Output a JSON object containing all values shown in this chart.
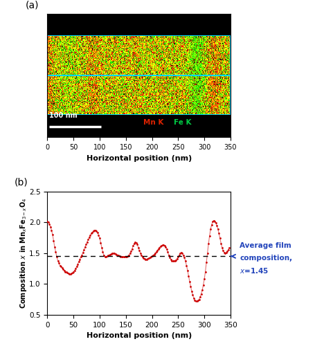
{
  "panel_a_label": "(a)",
  "panel_b_label": "(b)",
  "xlabel_b": "Horizontal position (nm)",
  "xlabel_a": "Horizontal position (nm)",
  "xlim": [
    0,
    350
  ],
  "ylim": [
    0.5,
    2.5
  ],
  "yticks": [
    0.5,
    1.0,
    1.5,
    2.0,
    2.5
  ],
  "xticks": [
    0,
    50,
    100,
    150,
    200,
    250,
    300,
    350
  ],
  "avg_composition": 1.45,
  "avg_color": "#2244bb",
  "line_color": "#cc0000",
  "marker_color": "#cc0000",
  "scale_bar_nm": "100 nm",
  "mn_k_color": "#dd2200",
  "fe_k_color": "#00cc44",
  "x_data": [
    0,
    2,
    4,
    6,
    8,
    10,
    12,
    14,
    16,
    18,
    20,
    22,
    24,
    26,
    28,
    30,
    32,
    34,
    36,
    38,
    40,
    42,
    44,
    46,
    48,
    50,
    52,
    54,
    56,
    58,
    60,
    62,
    64,
    66,
    68,
    70,
    72,
    74,
    76,
    78,
    80,
    82,
    84,
    86,
    88,
    90,
    92,
    94,
    96,
    98,
    100,
    102,
    104,
    106,
    108,
    110,
    112,
    114,
    116,
    118,
    120,
    122,
    124,
    126,
    128,
    130,
    132,
    134,
    136,
    138,
    140,
    142,
    144,
    146,
    148,
    150,
    152,
    154,
    156,
    158,
    160,
    162,
    164,
    166,
    168,
    170,
    172,
    174,
    176,
    178,
    180,
    182,
    184,
    186,
    188,
    190,
    192,
    194,
    196,
    198,
    200,
    202,
    204,
    206,
    208,
    210,
    212,
    214,
    216,
    218,
    220,
    222,
    224,
    226,
    228,
    230,
    232,
    234,
    236,
    238,
    240,
    242,
    244,
    246,
    248,
    250,
    252,
    254,
    256,
    258,
    260,
    262,
    264,
    266,
    268,
    270,
    272,
    274,
    276,
    278,
    280,
    282,
    284,
    286,
    288,
    290,
    292,
    294,
    296,
    298,
    300,
    302,
    304,
    306,
    308,
    310,
    312,
    314,
    316,
    318,
    320,
    322,
    324,
    326,
    328,
    330,
    332,
    334,
    336,
    338,
    340,
    342,
    344,
    346,
    348
  ],
  "y_data": [
    2.02,
    2.0,
    1.97,
    1.93,
    1.87,
    1.8,
    1.7,
    1.6,
    1.52,
    1.44,
    1.38,
    1.34,
    1.3,
    1.28,
    1.26,
    1.24,
    1.22,
    1.2,
    1.19,
    1.18,
    1.17,
    1.16,
    1.16,
    1.17,
    1.18,
    1.2,
    1.22,
    1.25,
    1.28,
    1.32,
    1.36,
    1.4,
    1.44,
    1.47,
    1.51,
    1.56,
    1.6,
    1.64,
    1.68,
    1.72,
    1.76,
    1.79,
    1.82,
    1.84,
    1.86,
    1.87,
    1.87,
    1.86,
    1.83,
    1.79,
    1.74,
    1.67,
    1.59,
    1.52,
    1.46,
    1.44,
    1.44,
    1.45,
    1.46,
    1.47,
    1.48,
    1.49,
    1.5,
    1.5,
    1.5,
    1.49,
    1.48,
    1.47,
    1.46,
    1.45,
    1.44,
    1.44,
    1.44,
    1.44,
    1.44,
    1.44,
    1.44,
    1.45,
    1.47,
    1.5,
    1.53,
    1.57,
    1.62,
    1.66,
    1.68,
    1.67,
    1.64,
    1.59,
    1.54,
    1.5,
    1.46,
    1.44,
    1.42,
    1.41,
    1.4,
    1.4,
    1.41,
    1.42,
    1.43,
    1.44,
    1.45,
    1.46,
    1.48,
    1.5,
    1.52,
    1.54,
    1.57,
    1.59,
    1.61,
    1.62,
    1.63,
    1.63,
    1.62,
    1.6,
    1.57,
    1.52,
    1.47,
    1.43,
    1.4,
    1.38,
    1.37,
    1.37,
    1.38,
    1.39,
    1.41,
    1.44,
    1.47,
    1.5,
    1.51,
    1.5,
    1.47,
    1.43,
    1.37,
    1.3,
    1.22,
    1.13,
    1.04,
    0.96,
    0.88,
    0.82,
    0.77,
    0.74,
    0.72,
    0.72,
    0.73,
    0.75,
    0.79,
    0.84,
    0.9,
    0.98,
    1.08,
    1.2,
    1.35,
    1.5,
    1.65,
    1.78,
    1.89,
    1.96,
    2.01,
    2.03,
    2.02,
    1.99,
    1.95,
    1.89,
    1.82,
    1.74,
    1.66,
    1.59,
    1.54,
    1.51,
    1.5,
    1.51,
    1.53,
    1.56,
    1.59
  ]
}
